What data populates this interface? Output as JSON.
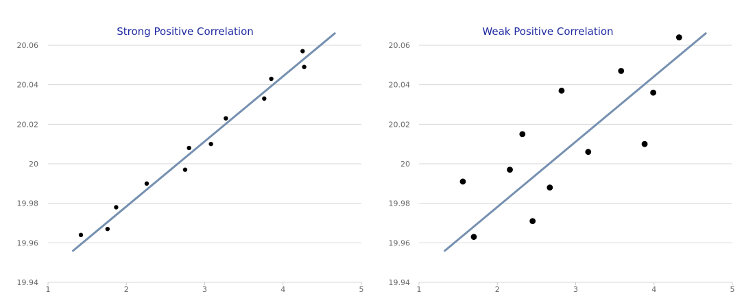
{
  "chart_data": [
    {
      "type": "scatter",
      "title": "Strong Positive Correlation",
      "xlabel": "",
      "ylabel": "",
      "xlim": [
        1,
        5
      ],
      "ylim": [
        19.94,
        20.07
      ],
      "x_ticks": [
        "1",
        "2",
        "3",
        "4",
        "5"
      ],
      "y_ticks": [
        "19.94",
        "19.96",
        "19.98",
        "20",
        "20.02",
        "20.04",
        "20.06"
      ],
      "grid": "horizontal",
      "points": [
        {
          "x": 1.42,
          "y": 19.964
        },
        {
          "x": 1.76,
          "y": 19.967
        },
        {
          "x": 1.87,
          "y": 19.978
        },
        {
          "x": 2.26,
          "y": 19.99
        },
        {
          "x": 2.75,
          "y": 19.997
        },
        {
          "x": 2.8,
          "y": 20.008
        },
        {
          "x": 3.08,
          "y": 20.01
        },
        {
          "x": 3.27,
          "y": 20.023
        },
        {
          "x": 3.76,
          "y": 20.033
        },
        {
          "x": 3.85,
          "y": 20.043
        },
        {
          "x": 4.25,
          "y": 20.057
        },
        {
          "x": 4.27,
          "y": 20.049
        }
      ],
      "trendline": {
        "x": [
          1.32,
          4.66
        ],
        "y": [
          19.956,
          20.066
        ]
      },
      "colors": {
        "points": "#000000",
        "trendline": "#7590b0",
        "title": "#1f2aa0",
        "grid": "#d7d7d7"
      }
    },
    {
      "type": "scatter",
      "title": "Weak Positive Correlation",
      "xlabel": "",
      "ylabel": "",
      "xlim": [
        1,
        5
      ],
      "ylim": [
        19.94,
        20.07
      ],
      "x_ticks": [
        "1",
        "2",
        "3",
        "4",
        "5"
      ],
      "y_ticks": [
        "19.94",
        "19.96",
        "19.98",
        "20",
        "20.02",
        "20.04",
        "20.06"
      ],
      "grid": "horizontal",
      "points": [
        {
          "x": 1.56,
          "y": 19.991
        },
        {
          "x": 1.7,
          "y": 19.963
        },
        {
          "x": 2.16,
          "y": 19.997
        },
        {
          "x": 2.32,
          "y": 20.015
        },
        {
          "x": 2.45,
          "y": 19.971
        },
        {
          "x": 2.67,
          "y": 19.988
        },
        {
          "x": 2.82,
          "y": 20.037
        },
        {
          "x": 3.16,
          "y": 20.006
        },
        {
          "x": 3.58,
          "y": 20.047
        },
        {
          "x": 3.88,
          "y": 20.01
        },
        {
          "x": 3.99,
          "y": 20.036
        },
        {
          "x": 4.32,
          "y": 20.064
        }
      ],
      "trendline": {
        "x": [
          1.33,
          4.66
        ],
        "y": [
          19.956,
          20.066
        ]
      },
      "colors": {
        "points": "#000000",
        "trendline": "#7590b0",
        "title": "#1f2aa0",
        "grid": "#d7d7d7"
      }
    }
  ]
}
